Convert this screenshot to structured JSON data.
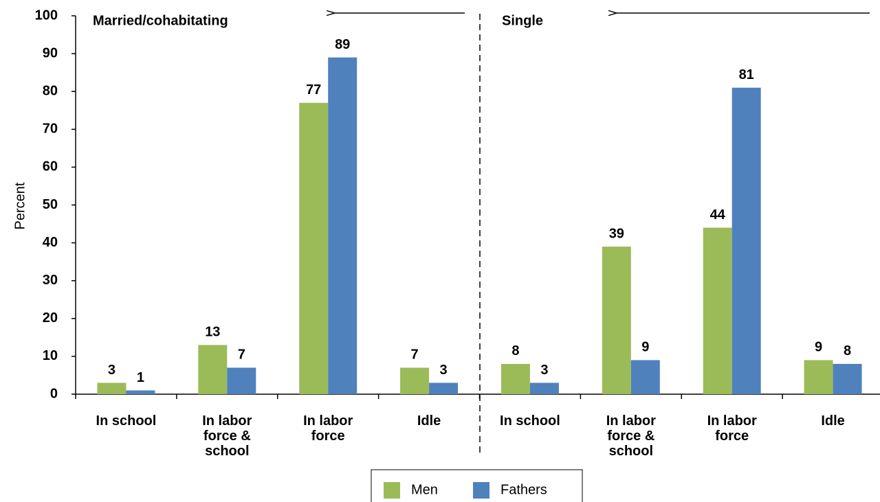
{
  "chart_data": {
    "type": "bar",
    "groups": [
      "Married/cohabitating",
      "Single"
    ],
    "categories": [
      "In school",
      "In labor force & school",
      "In labor force",
      "Idle",
      "In school",
      "In labor force & school",
      "In labor force",
      "Idle"
    ],
    "series": [
      {
        "name": "Men",
        "color": "#9bbb59",
        "values": [
          3,
          13,
          77,
          7,
          8,
          39,
          44,
          9
        ]
      },
      {
        "name": "Fathers",
        "color": "#4f81bd",
        "values": [
          1,
          7,
          89,
          3,
          3,
          9,
          81,
          8
        ]
      }
    ],
    "y_label": "Percent",
    "ylim": [
      0,
      100
    ],
    "yticks": [
      0,
      10,
      20,
      30,
      40,
      50,
      60,
      70,
      80,
      90,
      100
    ]
  }
}
